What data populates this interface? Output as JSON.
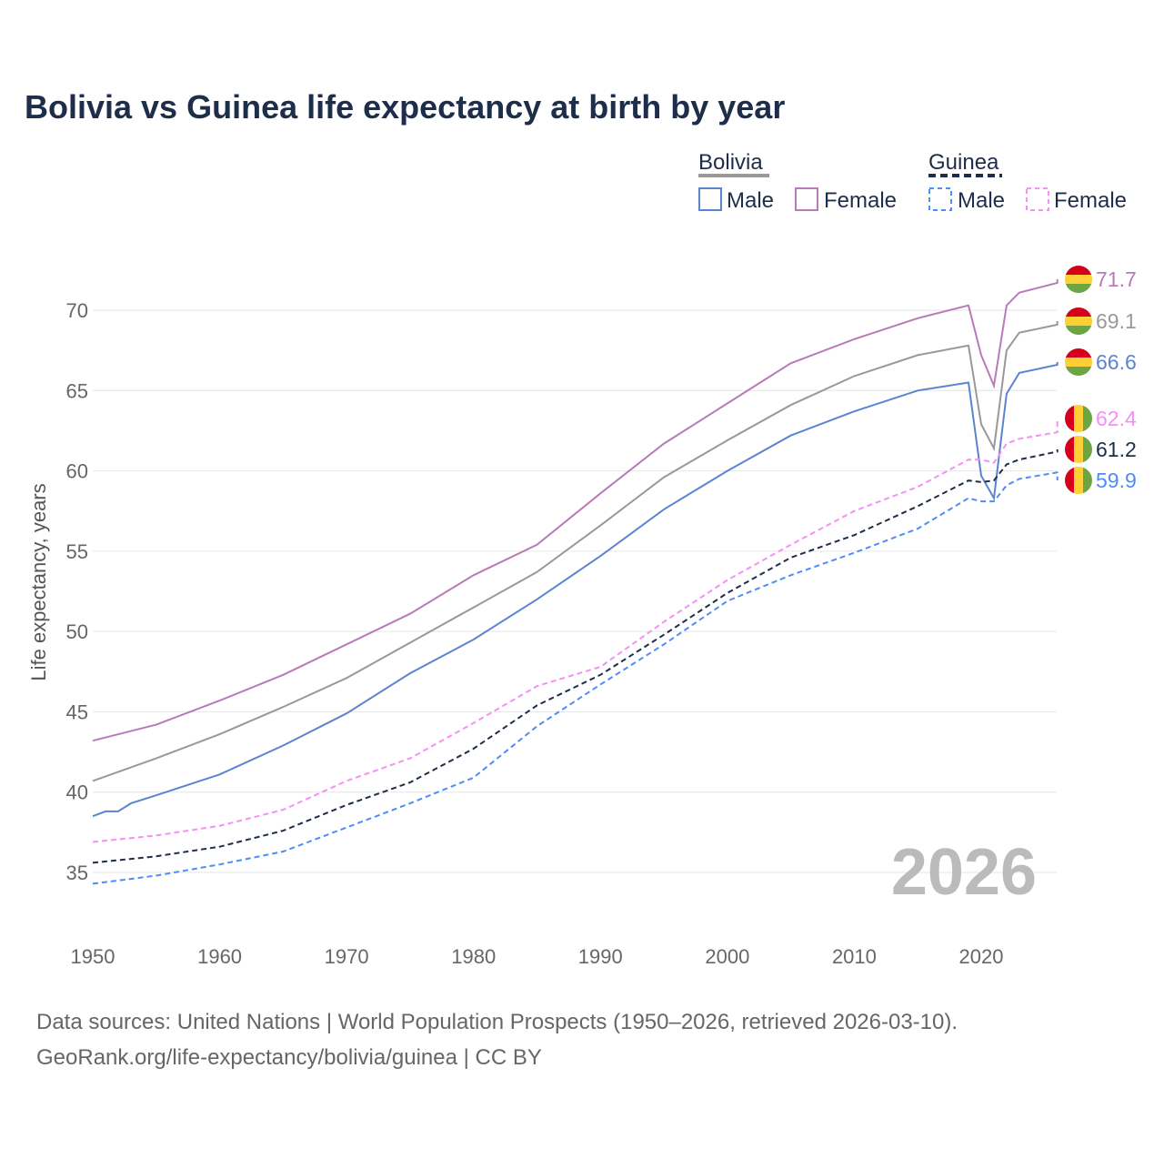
{
  "chart_data": {
    "type": "line",
    "title": "Bolivia vs Guinea life expectancy at birth by year",
    "xlabel": "",
    "ylabel": "Life expectancy, years",
    "xlim": [
      1950,
      2026
    ],
    "ylim": [
      32,
      73
    ],
    "x_ticks": [
      1950,
      1960,
      1970,
      1980,
      1990,
      2000,
      2010,
      2020
    ],
    "y_ticks": [
      35,
      40,
      45,
      50,
      55,
      60,
      65,
      70
    ],
    "grid": true,
    "watermark_year": "2026",
    "legend": {
      "groups": [
        {
          "country": "Bolivia",
          "style": "solid",
          "color": "#999999",
          "items": [
            {
              "label": "Male",
              "color": "#5b84d0"
            },
            {
              "label": "Female",
              "color": "#b87bb8"
            }
          ]
        },
        {
          "country": "Guinea",
          "style": "dashed",
          "color": "#1d2d4a",
          "items": [
            {
              "label": "Male",
              "color": "#4d8df7"
            },
            {
              "label": "Female",
              "color": "#f68ff5"
            }
          ]
        }
      ]
    },
    "series": [
      {
        "name": "Bolivia Female",
        "country": "Bolivia",
        "color": "#b87bb8",
        "dashed": false,
        "end_label": "71.7",
        "points": [
          [
            1950,
            43.2
          ],
          [
            1955,
            44.2
          ],
          [
            1960,
            45.7
          ],
          [
            1965,
            47.3
          ],
          [
            1970,
            49.2
          ],
          [
            1975,
            51.1
          ],
          [
            1980,
            53.5
          ],
          [
            1985,
            55.4
          ],
          [
            1990,
            58.6
          ],
          [
            1995,
            61.7
          ],
          [
            2000,
            64.2
          ],
          [
            2005,
            66.7
          ],
          [
            2010,
            68.2
          ],
          [
            2015,
            69.5
          ],
          [
            2019,
            70.3
          ],
          [
            2020,
            67.2
          ],
          [
            2021,
            65.3
          ],
          [
            2022,
            70.3
          ],
          [
            2023,
            71.1
          ],
          [
            2026,
            71.7
          ]
        ]
      },
      {
        "name": "Bolivia Total",
        "country": "Bolivia",
        "color": "#999999",
        "dashed": false,
        "end_label": "69.1",
        "points": [
          [
            1950,
            40.7
          ],
          [
            1955,
            42.1
          ],
          [
            1960,
            43.6
          ],
          [
            1965,
            45.3
          ],
          [
            1970,
            47.1
          ],
          [
            1975,
            49.3
          ],
          [
            1980,
            51.5
          ],
          [
            1985,
            53.7
          ],
          [
            1990,
            56.6
          ],
          [
            1995,
            59.6
          ],
          [
            2000,
            61.9
          ],
          [
            2005,
            64.1
          ],
          [
            2010,
            65.9
          ],
          [
            2015,
            67.2
          ],
          [
            2019,
            67.8
          ],
          [
            2020,
            62.9
          ],
          [
            2021,
            61.4
          ],
          [
            2022,
            67.5
          ],
          [
            2023,
            68.6
          ],
          [
            2026,
            69.1
          ]
        ]
      },
      {
        "name": "Bolivia Male",
        "country": "Bolivia",
        "color": "#5b84d0",
        "dashed": false,
        "end_label": "66.6",
        "points": [
          [
            1950,
            38.5
          ],
          [
            1951,
            38.8
          ],
          [
            1952,
            38.8
          ],
          [
            1953,
            39.3
          ],
          [
            1955,
            39.8
          ],
          [
            1960,
            41.1
          ],
          [
            1965,
            42.9
          ],
          [
            1970,
            44.9
          ],
          [
            1975,
            47.4
          ],
          [
            1980,
            49.5
          ],
          [
            1985,
            52.0
          ],
          [
            1990,
            54.7
          ],
          [
            1995,
            57.6
          ],
          [
            2000,
            60.0
          ],
          [
            2005,
            62.2
          ],
          [
            2010,
            63.7
          ],
          [
            2015,
            65.0
          ],
          [
            2019,
            65.5
          ],
          [
            2020,
            59.7
          ],
          [
            2021,
            58.3
          ],
          [
            2022,
            64.8
          ],
          [
            2023,
            66.1
          ],
          [
            2026,
            66.6
          ]
        ]
      },
      {
        "name": "Guinea Female",
        "country": "Guinea",
        "color": "#f68ff5",
        "dashed": true,
        "end_label": "62.4",
        "points": [
          [
            1950,
            36.9
          ],
          [
            1955,
            37.3
          ],
          [
            1960,
            37.9
          ],
          [
            1965,
            38.9
          ],
          [
            1970,
            40.7
          ],
          [
            1975,
            42.1
          ],
          [
            1980,
            44.3
          ],
          [
            1985,
            46.6
          ],
          [
            1990,
            47.8
          ],
          [
            1995,
            50.6
          ],
          [
            2000,
            53.2
          ],
          [
            2005,
            55.4
          ],
          [
            2010,
            57.5
          ],
          [
            2015,
            59.0
          ],
          [
            2019,
            60.7
          ],
          [
            2020,
            60.7
          ],
          [
            2021,
            60.5
          ],
          [
            2022,
            61.7
          ],
          [
            2023,
            62.0
          ],
          [
            2026,
            62.4
          ]
        ]
      },
      {
        "name": "Guinea Total",
        "country": "Guinea",
        "color": "#1d2d4a",
        "dashed": true,
        "end_label": "61.2",
        "points": [
          [
            1950,
            35.6
          ],
          [
            1955,
            36.0
          ],
          [
            1960,
            36.6
          ],
          [
            1965,
            37.6
          ],
          [
            1970,
            39.2
          ],
          [
            1975,
            40.6
          ],
          [
            1980,
            42.7
          ],
          [
            1985,
            45.4
          ],
          [
            1990,
            47.3
          ],
          [
            1995,
            49.8
          ],
          [
            2000,
            52.4
          ],
          [
            2005,
            54.6
          ],
          [
            2010,
            56.0
          ],
          [
            2015,
            57.8
          ],
          [
            2019,
            59.4
          ],
          [
            2020,
            59.3
          ],
          [
            2021,
            59.4
          ],
          [
            2022,
            60.4
          ],
          [
            2023,
            60.7
          ],
          [
            2026,
            61.2
          ]
        ]
      },
      {
        "name": "Guinea Male",
        "country": "Guinea",
        "color": "#4d8df7",
        "dashed": true,
        "end_label": "59.9",
        "points": [
          [
            1950,
            34.3
          ],
          [
            1955,
            34.8
          ],
          [
            1960,
            35.5
          ],
          [
            1965,
            36.3
          ],
          [
            1970,
            37.8
          ],
          [
            1975,
            39.3
          ],
          [
            1980,
            40.9
          ],
          [
            1985,
            44.1
          ],
          [
            1990,
            46.7
          ],
          [
            1995,
            49.2
          ],
          [
            2000,
            51.9
          ],
          [
            2005,
            53.5
          ],
          [
            2010,
            54.9
          ],
          [
            2015,
            56.4
          ],
          [
            2019,
            58.3
          ],
          [
            2020,
            58.1
          ],
          [
            2021,
            58.1
          ],
          [
            2022,
            59.1
          ],
          [
            2023,
            59.5
          ],
          [
            2026,
            59.9
          ]
        ]
      }
    ]
  },
  "footer": {
    "line1": "Data sources: United Nations | World Population Prospects (1950–2026, retrieved 2026-03-10).",
    "line2": "GeoRank.org/life-expectancy/bolivia/guinea | CC BY"
  }
}
